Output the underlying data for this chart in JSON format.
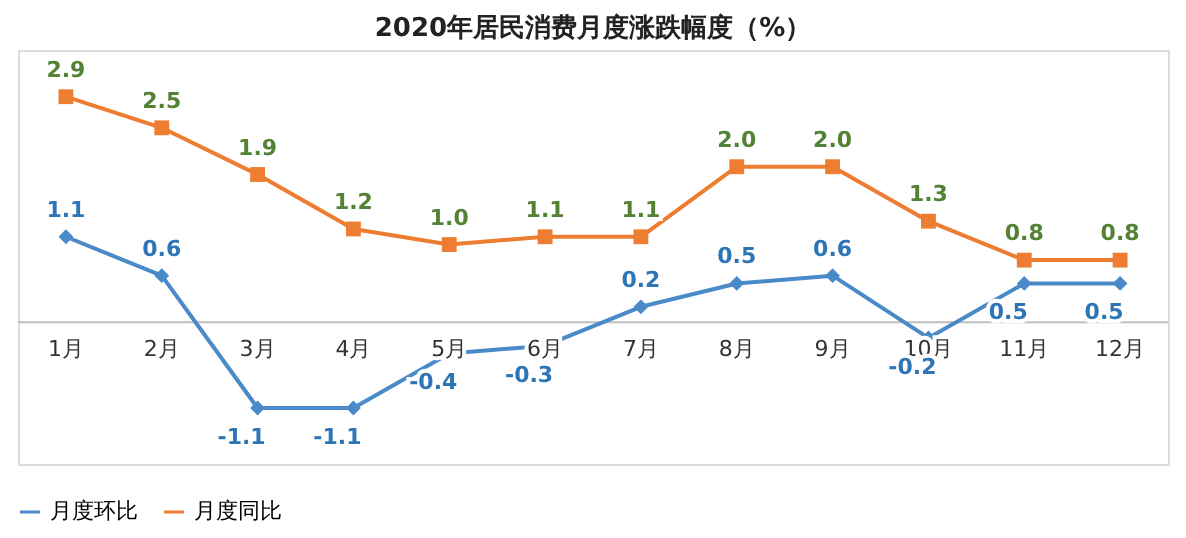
{
  "chart_data": {
    "type": "line",
    "title": "2020年居民消费月度涨跌幅度（%）",
    "categories": [
      "1月",
      "2月",
      "3月",
      "4月",
      "5月",
      "6月",
      "7月",
      "8月",
      "9月",
      "10月",
      "11月",
      "12月"
    ],
    "series": [
      {
        "name": "月度环比",
        "color": "#4a8ac9",
        "marker": "diamond",
        "values": [
          1.1,
          0.6,
          -1.1,
          -1.1,
          -0.4,
          -0.3,
          0.2,
          0.5,
          0.6,
          -0.2,
          0.5,
          0.5
        ],
        "value_labels": [
          "1.1",
          "0.6",
          "-1.1",
          "-1.1",
          "-0.4",
          "-0.3",
          "0.2",
          "0.5",
          "0.6",
          "-0.2",
          "0.5",
          "0.5"
        ]
      },
      {
        "name": "月度同比",
        "color": "#ed7d31",
        "marker": "square",
        "values": [
          2.9,
          2.5,
          1.9,
          1.2,
          1.0,
          1.1,
          1.1,
          2.0,
          2.0,
          1.3,
          0.8,
          0.8
        ],
        "value_labels": [
          "2.9",
          "2.5",
          "1.9",
          "1.2",
          "1.0",
          "1.1",
          "1.1",
          "2.0",
          "2.0",
          "1.3",
          "0.8",
          "0.8"
        ]
      }
    ],
    "legend": "bottom"
  }
}
